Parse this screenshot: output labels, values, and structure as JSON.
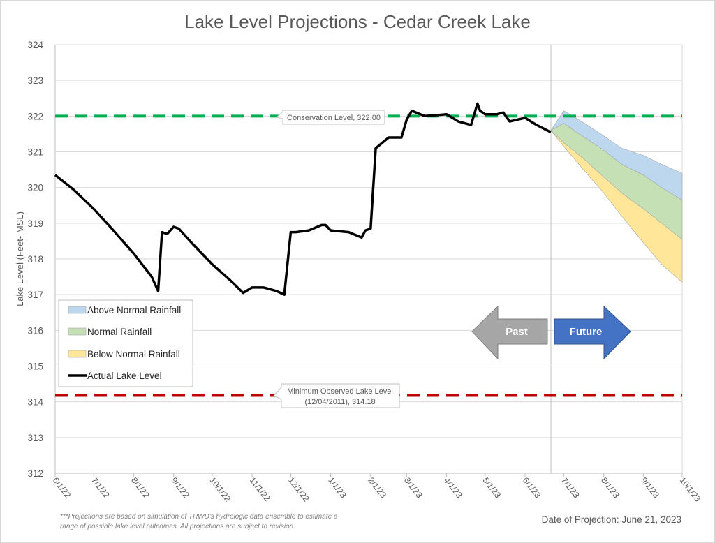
{
  "chart": {
    "title": "Lake Level Projections - Cedar Creek Lake",
    "ylabel": "Lake Level (Feet- MSL)",
    "footnote_line1": "***Projections are based on simulation of TRWD's hydrologic data ensemble to estimate a",
    "footnote_line2": "range of possible lake level outcomes.  All projections are subject to revision.",
    "projection_date": "Date of Projection: June 21, 2023",
    "arrows": {
      "past": "Past",
      "future": "Future"
    },
    "callouts": {
      "conservation": "Conservation Level, 322.00",
      "minimum_line1": "Minimum Observed Lake Level",
      "minimum_line2": "(12/04/2011), 314.18"
    },
    "legend": {
      "above": "Above Normal Rainfall",
      "normal": "Normal Rainfall",
      "below": "Below Normal Rainfall",
      "actual": "Actual Lake Level"
    },
    "yticks": [
      "324",
      "323",
      "322",
      "321",
      "320",
      "319",
      "318",
      "317",
      "316",
      "315",
      "314",
      "313",
      "312"
    ],
    "xticks": [
      "6/1/22",
      "7/1/22",
      "8/1/22",
      "9/1/22",
      "10/1/22",
      "11/1/22",
      "12/1/22",
      "1/1/23",
      "2/1/23",
      "3/1/23",
      "4/1/23",
      "5/1/23",
      "6/1/23",
      "7/1/23",
      "8/1/23",
      "9/1/23",
      "10/1/23"
    ]
  },
  "colors": {
    "above": "#bdd7ee",
    "normal": "#c5e0b4",
    "below": "#ffe699",
    "actual": "#000000",
    "conservation": "#00b050",
    "minimum": "#c00000",
    "past_arrow": "#a6a6a6",
    "future_arrow": "#4472c4",
    "grid": "#d9d9d9"
  },
  "chart_data": {
    "type": "line",
    "title": "Lake Level Projections - Cedar Creek Lake",
    "xlabel": "",
    "ylabel": "Lake Level (Feet- MSL)",
    "ylim": [
      312,
      324
    ],
    "xlim": [
      "6/1/22",
      "10/1/23"
    ],
    "grid": true,
    "legend_position": "lower-left inside",
    "x_tick_labels": [
      "6/1/22",
      "7/1/22",
      "8/1/22",
      "9/1/22",
      "10/1/22",
      "11/1/22",
      "12/1/22",
      "1/1/23",
      "2/1/23",
      "3/1/23",
      "4/1/23",
      "5/1/23",
      "6/1/23",
      "7/1/23",
      "8/1/23",
      "9/1/23",
      "10/1/23"
    ],
    "reference_lines": [
      {
        "name": "Conservation Level",
        "value": 322.0,
        "style": "dashed",
        "color": "#00b050"
      },
      {
        "name": "Minimum Observed Lake Level (12/04/2011)",
        "value": 314.18,
        "style": "dashed",
        "color": "#c00000"
      }
    ],
    "projection_date": "2023-06-21",
    "series": [
      {
        "name": "Actual Lake Level",
        "type": "line",
        "x": [
          "6/1/22",
          "6/15/22",
          "7/1/22",
          "7/15/22",
          "8/1/22",
          "8/15/22",
          "8/20/22",
          "8/23/22",
          "8/27/22",
          "9/1/22",
          "9/5/22",
          "9/15/22",
          "10/1/22",
          "10/15/22",
          "10/25/22",
          "11/1/22",
          "11/10/22",
          "11/20/22",
          "11/26/22",
          "12/1/22",
          "12/5/22",
          "12/15/22",
          "12/25/22",
          "12/28/22",
          "1/1/23",
          "1/15/23",
          "1/25/23",
          "1/28/23",
          "2/1/23",
          "2/5/23",
          "2/15/23",
          "2/25/23",
          "3/1/23",
          "3/5/23",
          "3/15/23",
          "4/1/23",
          "4/10/23",
          "4/20/23",
          "4/25/23",
          "4/27/23",
          "5/1/23",
          "5/10/23",
          "5/15/23",
          "5/20/23",
          "6/1/23",
          "6/10/23",
          "6/21/23"
        ],
        "values": [
          320.35,
          319.95,
          319.4,
          318.85,
          318.15,
          317.5,
          317.1,
          318.75,
          318.7,
          318.9,
          318.85,
          318.45,
          317.85,
          317.4,
          317.05,
          317.2,
          317.2,
          317.1,
          317.0,
          318.75,
          318.75,
          318.8,
          318.95,
          318.95,
          318.8,
          318.75,
          318.6,
          318.8,
          318.85,
          321.1,
          321.4,
          321.4,
          321.9,
          322.15,
          322.0,
          322.05,
          321.85,
          321.75,
          322.35,
          322.15,
          322.05,
          322.05,
          322.1,
          321.85,
          321.95,
          321.75,
          321.55
        ]
      },
      {
        "name": "Above Normal Rainfall",
        "type": "area",
        "x": [
          "6/21/23",
          "7/1/23",
          "7/15/23",
          "8/1/23",
          "8/15/23",
          "9/1/23",
          "9/15/23",
          "10/1/23"
        ],
        "upper": [
          321.6,
          322.15,
          321.85,
          321.45,
          321.1,
          320.9,
          320.65,
          320.4
        ],
        "lower": [
          321.6,
          321.8,
          321.45,
          321.05,
          320.65,
          320.35,
          320.0,
          319.65
        ]
      },
      {
        "name": "Normal Rainfall",
        "type": "area",
        "x": [
          "6/21/23",
          "7/1/23",
          "7/15/23",
          "8/1/23",
          "8/15/23",
          "9/1/23",
          "9/15/23",
          "10/1/23"
        ],
        "upper": [
          321.6,
          321.8,
          321.45,
          321.05,
          320.65,
          320.35,
          320.0,
          319.65
        ],
        "lower": [
          321.6,
          321.25,
          320.85,
          320.3,
          319.85,
          319.4,
          319.0,
          318.55
        ]
      },
      {
        "name": "Below Normal Rainfall",
        "type": "area",
        "x": [
          "6/21/23",
          "7/1/23",
          "7/15/23",
          "8/1/23",
          "8/15/23",
          "9/1/23",
          "9/15/23",
          "10/1/23"
        ],
        "upper": [
          321.6,
          321.25,
          320.85,
          320.3,
          319.85,
          319.4,
          319.0,
          318.55
        ],
        "lower": [
          321.6,
          321.15,
          320.55,
          319.85,
          319.2,
          318.45,
          317.85,
          317.35
        ]
      }
    ]
  }
}
